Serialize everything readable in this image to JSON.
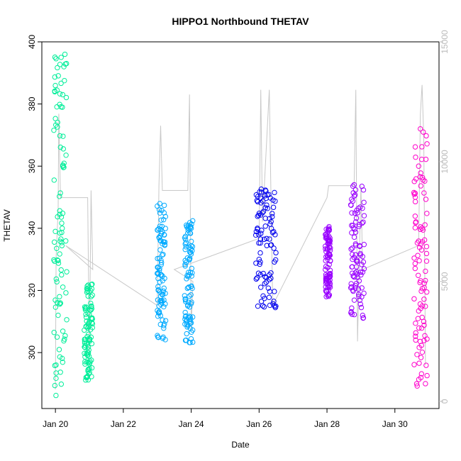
{
  "chart_data": {
    "type": "scatter",
    "title": "HIPPO1 Northbound THETAV",
    "xlabel": "Date",
    "ylabel": "THETAV",
    "x_ticks": [
      "Jan 20",
      "Jan 22",
      "Jan 24",
      "Jan 26",
      "Jan 28",
      "Jan 30"
    ],
    "x_tick_days": [
      20,
      22,
      24,
      26,
      28,
      30
    ],
    "xlim": [
      19.6,
      31.3
    ],
    "ylim": [
      282,
      400
    ],
    "y_ticks": [
      300,
      320,
      340,
      360,
      380,
      400
    ],
    "y2_ticks": [
      0,
      5000,
      10000,
      15000
    ],
    "y2lim": [
      -300,
      15000
    ],
    "grid": false,
    "legend": "none",
    "series": [
      {
        "color": "#00EE99",
        "day_range": [
          19.95,
          20.35
        ],
        "y_range": [
          286,
          396
        ],
        "points": [
          [
            20.02,
            296
          ],
          [
            20.05,
            305
          ],
          [
            20.08,
            312
          ],
          [
            20.12,
            318
          ],
          [
            20.18,
            325
          ],
          [
            20.2,
            340
          ],
          [
            20.22,
            360
          ],
          [
            20.25,
            392
          ],
          [
            20.28,
            396
          ]
        ]
      },
      {
        "color": "#00EE99",
        "day_range": [
          20.85,
          21.1
        ],
        "y_range": [
          291,
          322
        ],
        "points": [
          [
            20.9,
            292
          ],
          [
            20.95,
            300
          ],
          [
            21.0,
            310
          ],
          [
            21.05,
            318
          ],
          [
            21.08,
            322
          ]
        ]
      },
      {
        "color": "#00AAFF",
        "day_range": [
          23.0,
          23.25
        ],
        "y_range": [
          304,
          348
        ],
        "points": [
          [
            23.02,
            305
          ],
          [
            23.05,
            315
          ],
          [
            23.1,
            325
          ],
          [
            23.15,
            335
          ],
          [
            23.2,
            345
          ]
        ]
      },
      {
        "color": "#00AAFF",
        "day_range": [
          23.8,
          24.05
        ],
        "y_range": [
          303,
          343
        ],
        "points": [
          [
            23.85,
            304
          ],
          [
            23.9,
            315
          ],
          [
            23.95,
            330
          ],
          [
            24.0,
            340
          ]
        ]
      },
      {
        "color": "#0000EE",
        "day_range": [
          25.9,
          26.5
        ],
        "y_range": [
          314,
          353
        ],
        "points": [
          [
            25.95,
            340
          ],
          [
            26.0,
            330
          ],
          [
            26.1,
            345
          ],
          [
            26.2,
            352
          ],
          [
            26.3,
            325
          ],
          [
            26.45,
            315
          ]
        ]
      },
      {
        "color": "#9900FF",
        "day_range": [
          27.95,
          28.1
        ],
        "y_range": [
          318,
          341
        ],
        "points": [
          [
            27.98,
            318
          ],
          [
            28.02,
            330
          ],
          [
            28.05,
            340
          ]
        ]
      },
      {
        "color": "#9900FF",
        "day_range": [
          28.7,
          29.1
        ],
        "y_range": [
          311,
          354
        ],
        "points": [
          [
            28.75,
            330
          ],
          [
            28.8,
            354
          ],
          [
            28.9,
            345
          ],
          [
            29.0,
            325
          ],
          [
            29.05,
            312
          ]
        ]
      },
      {
        "color": "#FF00CC",
        "day_range": [
          30.55,
          30.95
        ],
        "y_range": [
          289,
          372
        ],
        "points": [
          [
            30.6,
            350
          ],
          [
            30.7,
            360
          ],
          [
            30.75,
            372
          ],
          [
            30.8,
            340
          ],
          [
            30.85,
            310
          ],
          [
            30.9,
            290
          ]
        ]
      }
    ],
    "altitude_series": {
      "color": "#c8c8c8",
      "points": [
        [
          20.0,
          500
        ],
        [
          20.02,
          6000
        ],
        [
          20.08,
          8000
        ],
        [
          20.1,
          12000
        ],
        [
          20.15,
          8500
        ],
        [
          20.3,
          8500
        ],
        [
          20.95,
          8500
        ],
        [
          21.0,
          2000
        ],
        [
          21.05,
          8800
        ],
        [
          21.1,
          5500
        ],
        [
          20.3,
          6500
        ],
        [
          23.0,
          4000
        ],
        [
          23.05,
          9000
        ],
        [
          23.1,
          11500
        ],
        [
          23.15,
          8800
        ],
        [
          23.9,
          8800
        ],
        [
          23.95,
          12800
        ],
        [
          24.0,
          3000
        ],
        [
          24.05,
          5000
        ],
        [
          23.5,
          5500
        ],
        [
          26.0,
          6800
        ],
        [
          26.05,
          13000
        ],
        [
          26.1,
          7500
        ],
        [
          26.3,
          13000
        ],
        [
          26.4,
          4000
        ],
        [
          28.0,
          8500
        ],
        [
          28.05,
          9000
        ],
        [
          28.8,
          9000
        ],
        [
          28.85,
          13000
        ],
        [
          28.9,
          2500
        ],
        [
          29.0,
          9000
        ],
        [
          29.05,
          5500
        ],
        [
          30.7,
          6500
        ],
        [
          30.75,
          12000
        ],
        [
          30.8,
          13200
        ],
        [
          30.85,
          11000
        ],
        [
          30.9,
          1500
        ]
      ]
    }
  }
}
